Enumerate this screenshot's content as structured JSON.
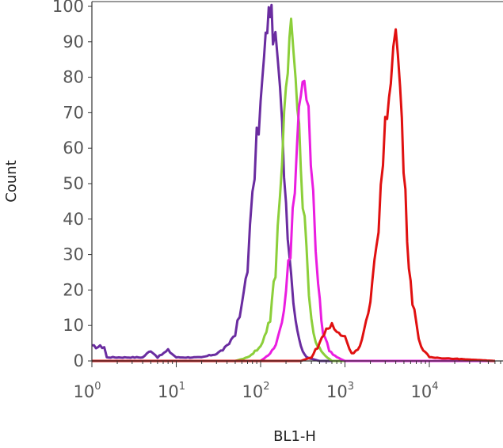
{
  "chart_data": {
    "type": "line",
    "title": "",
    "xlabel": "BL1-H",
    "ylabel": "Count",
    "x_scale": "log",
    "xlim": [
      1,
      60000
    ],
    "ylim": [
      0,
      100
    ],
    "grid": false,
    "legend": "none",
    "y_ticks": [
      "0",
      "10",
      "20",
      "30",
      "40",
      "50",
      "60",
      "70",
      "80",
      "90",
      "100"
    ],
    "x_ticks": [
      {
        "base": "10",
        "exp": "0"
      },
      {
        "base": "10",
        "exp": "1"
      },
      {
        "base": "10",
        "exp": "2"
      },
      {
        "base": "10",
        "exp": "3"
      },
      {
        "base": "10",
        "exp": "4"
      }
    ],
    "series": [
      {
        "color": "#6a2ca0",
        "points": [
          [
            1,
            4
          ],
          [
            1.4,
            4
          ],
          [
            1.5,
            1
          ],
          [
            4,
            1
          ],
          [
            5,
            3
          ],
          [
            6,
            1
          ],
          [
            8,
            3
          ],
          [
            10,
            1
          ],
          [
            20,
            1
          ],
          [
            30,
            2
          ],
          [
            40,
            4
          ],
          [
            50,
            8
          ],
          [
            60,
            15
          ],
          [
            70,
            28
          ],
          [
            80,
            45
          ],
          [
            90,
            62
          ],
          [
            100,
            72
          ],
          [
            110,
            85
          ],
          [
            120,
            95
          ],
          [
            130,
            100
          ],
          [
            140,
            93
          ],
          [
            160,
            85
          ],
          [
            180,
            65
          ],
          [
            200,
            45
          ],
          [
            230,
            25
          ],
          [
            260,
            12
          ],
          [
            300,
            4
          ],
          [
            350,
            1
          ],
          [
            500,
            0
          ],
          [
            60000,
            0
          ]
        ]
      },
      {
        "color": "#8ccf3a",
        "points": [
          [
            1,
            0
          ],
          [
            50,
            0
          ],
          [
            70,
            1
          ],
          [
            100,
            4
          ],
          [
            130,
            12
          ],
          [
            150,
            25
          ],
          [
            170,
            48
          ],
          [
            190,
            70
          ],
          [
            210,
            85
          ],
          [
            230,
            95
          ],
          [
            260,
            80
          ],
          [
            300,
            55
          ],
          [
            350,
            30
          ],
          [
            400,
            12
          ],
          [
            450,
            5
          ],
          [
            550,
            2
          ],
          [
            700,
            0
          ],
          [
            60000,
            0
          ]
        ]
      },
      {
        "color": "#ea1de0",
        "points": [
          [
            1,
            0
          ],
          [
            100,
            0
          ],
          [
            130,
            2
          ],
          [
            160,
            6
          ],
          [
            200,
            18
          ],
          [
            240,
            40
          ],
          [
            270,
            60
          ],
          [
            300,
            78
          ],
          [
            330,
            82
          ],
          [
            370,
            70
          ],
          [
            420,
            45
          ],
          [
            480,
            22
          ],
          [
            550,
            8
          ],
          [
            650,
            3
          ],
          [
            800,
            1
          ],
          [
            1000,
            0
          ],
          [
            60000,
            0
          ]
        ]
      },
      {
        "color": "#e01010",
        "points": [
          [
            1,
            0
          ],
          [
            300,
            0
          ],
          [
            400,
            1
          ],
          [
            500,
            5
          ],
          [
            600,
            9
          ],
          [
            700,
            10
          ],
          [
            800,
            8
          ],
          [
            1000,
            7
          ],
          [
            1200,
            2
          ],
          [
            1500,
            4
          ],
          [
            2000,
            15
          ],
          [
            2500,
            40
          ],
          [
            3000,
            65
          ],
          [
            3500,
            82
          ],
          [
            4000,
            93
          ],
          [
            4500,
            78
          ],
          [
            5200,
            45
          ],
          [
            6000,
            22
          ],
          [
            7000,
            10
          ],
          [
            8000,
            4
          ],
          [
            10000,
            1
          ],
          [
            60000,
            0
          ]
        ]
      }
    ]
  }
}
